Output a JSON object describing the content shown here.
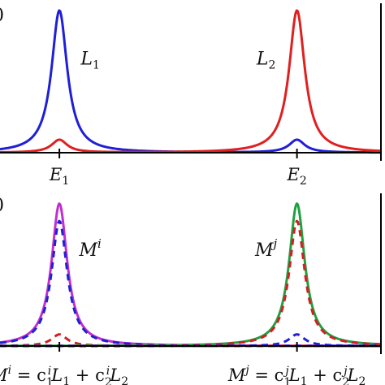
{
  "chart_data": [
    {
      "type": "line",
      "panel": "top",
      "x_axis": {
        "ticks": [
          {
            "x": 1,
            "label": "E",
            "sub": "1"
          },
          {
            "x": 2,
            "label": "E",
            "sub": "2"
          }
        ]
      },
      "xlim": [
        0.75,
        2.35
      ],
      "ylim": [
        0,
        1.05
      ],
      "grid": false,
      "series": [
        {
          "id": "L1",
          "color": "#1f1fd8",
          "dash": "solid",
          "peaks": [
            {
              "x0": 1,
              "height": 1.0
            },
            {
              "x0": 2,
              "height": 0.09
            }
          ],
          "hwhm": 0.04
        },
        {
          "id": "L2",
          "color": "#e02020",
          "dash": "solid",
          "peaks": [
            {
              "x0": 1,
              "height": 0.09
            },
            {
              "x0": 2,
              "height": 1.0
            }
          ],
          "hwhm": 0.04
        }
      ],
      "annotations": [
        {
          "text": "L",
          "sub": "1",
          "x": 1.13,
          "y": 0.62
        },
        {
          "text": "L",
          "sub": "2",
          "x": 1.87,
          "y": 0.62
        }
      ],
      "edge_fragments": [
        "0"
      ]
    },
    {
      "type": "line",
      "panel": "bottom",
      "x_axis": {
        "ticks": [
          {
            "x": 1,
            "label": ""
          },
          {
            "x": 2,
            "label": ""
          }
        ],
        "formulas": [
          {
            "parts": [
              "M",
              "i",
              " = c",
              "1",
              "i",
              "L",
              "1",
              " + c",
              "2",
              "i",
              "L",
              "2"
            ]
          },
          {
            "parts": [
              "M",
              "j",
              " = c",
              "1",
              "j",
              "L",
              "1",
              " + c",
              "2",
              "j",
              "L",
              "2"
            ]
          }
        ]
      },
      "xlim": [
        0.75,
        2.35
      ],
      "ylim": [
        0,
        1.05
      ],
      "grid": false,
      "series": [
        {
          "id": "Mi_total",
          "color": "#c030d0",
          "dash": "solid",
          "peaks": [
            {
              "x0": 1,
              "height": 0.98
            }
          ],
          "hwhm": 0.04
        },
        {
          "id": "Mi_L1_part",
          "color": "#2020d0",
          "dash": "dashed",
          "peaks": [
            {
              "x0": 1,
              "height": 0.86
            }
          ],
          "hwhm": 0.04
        },
        {
          "id": "Mi_L2_part",
          "color": "#d02020",
          "dash": "dashed",
          "peaks": [
            {
              "x0": 1,
              "height": 0.08
            }
          ],
          "hwhm": 0.04
        },
        {
          "id": "Mj_total",
          "color": "#20a040",
          "dash": "solid",
          "peaks": [
            {
              "x0": 2,
              "height": 0.98
            }
          ],
          "hwhm": 0.04
        },
        {
          "id": "Mj_L2_part",
          "color": "#d02020",
          "dash": "dashed",
          "peaks": [
            {
              "x0": 2,
              "height": 0.86
            }
          ],
          "hwhm": 0.04
        },
        {
          "id": "Mj_L1_part",
          "color": "#2020d0",
          "dash": "dashed",
          "peaks": [
            {
              "x0": 2,
              "height": 0.08
            }
          ],
          "hwhm": 0.04
        }
      ],
      "annotations": [
        {
          "text": "M",
          "sup": "i",
          "x": 1.13,
          "y": 0.62
        },
        {
          "text": "M",
          "sup": "j",
          "x": 1.87,
          "y": 0.62
        }
      ],
      "edge_fragments": [
        "0"
      ]
    }
  ]
}
